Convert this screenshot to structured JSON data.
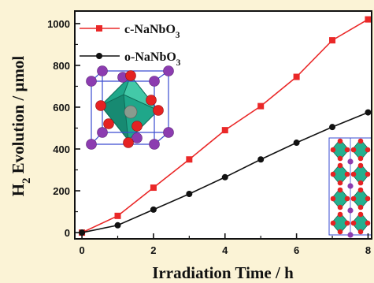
{
  "chart_data": {
    "type": "line",
    "xlabel": "Irradiation Time / h",
    "ylabel_parts": [
      "H",
      "2",
      " Evolution / μmol"
    ],
    "xlim": [
      -0.2,
      8.1
    ],
    "ylim": [
      -30,
      1060
    ],
    "x_ticks": [
      0,
      2,
      4,
      6,
      8
    ],
    "y_ticks": [
      0,
      200,
      400,
      600,
      800,
      1000
    ],
    "x_tick_labels": [
      "0",
      "2",
      "4",
      "6",
      "8"
    ],
    "y_tick_labels": [
      "0",
      "200",
      "400",
      "600",
      "800",
      "1000"
    ],
    "legend_placement": "top-center",
    "series": [
      {
        "name_parts": [
          "c-NaNbO",
          "3"
        ],
        "marker": "square",
        "color": "#ea2828",
        "x": [
          0,
          1,
          2,
          3,
          4,
          5,
          6,
          7,
          8
        ],
        "values": [
          0,
          80,
          215,
          350,
          490,
          605,
          745,
          920,
          1020
        ]
      },
      {
        "name_parts": [
          "o-NaNbO",
          "3"
        ],
        "marker": "circle",
        "color": "#111111",
        "x": [
          0,
          1,
          2,
          3,
          4,
          5,
          6,
          7,
          8
        ],
        "values": [
          0,
          35,
          110,
          185,
          265,
          350,
          430,
          505,
          575
        ]
      }
    ]
  }
}
